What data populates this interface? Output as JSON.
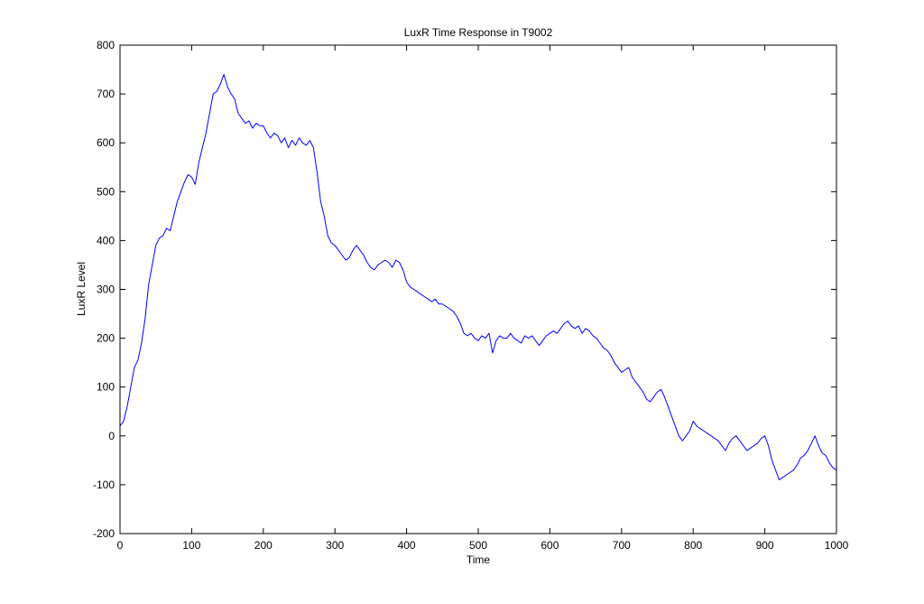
{
  "chart_data": {
    "type": "line",
    "title": "LuxR Time Response in T9002",
    "xlabel": "Time",
    "ylabel": "LuxR Level",
    "xlim": [
      0,
      1000
    ],
    "ylim": [
      -200,
      800
    ],
    "xticks": [
      0,
      100,
      200,
      300,
      400,
      500,
      600,
      700,
      800,
      900,
      1000
    ],
    "yticks": [
      -200,
      -100,
      0,
      100,
      200,
      300,
      400,
      500,
      600,
      700,
      800
    ],
    "grid": false,
    "legend": "none",
    "line_color": "#0000ff",
    "series": [
      {
        "x": [
          0,
          5,
          10,
          15,
          20,
          25,
          30,
          35,
          40,
          45,
          50,
          55,
          60,
          65,
          70,
          75,
          80,
          85,
          90,
          95,
          100,
          105,
          110,
          115,
          120,
          125,
          130,
          135,
          140,
          145,
          150,
          155,
          160,
          165,
          170,
          175,
          180,
          185,
          190,
          195,
          200,
          205,
          210,
          215,
          220,
          225,
          230,
          235,
          240,
          245,
          250,
          255,
          260,
          265,
          270,
          275,
          280,
          285,
          290,
          295,
          300,
          305,
          310,
          315,
          320,
          325,
          330,
          335,
          340,
          345,
          350,
          355,
          360,
          365,
          370,
          375,
          380,
          385,
          390,
          395,
          400,
          405,
          410,
          415,
          420,
          425,
          430,
          435,
          440,
          445,
          450,
          455,
          460,
          465,
          470,
          475,
          480,
          485,
          490,
          495,
          500,
          505,
          510,
          515,
          520,
          525,
          530,
          535,
          540,
          545,
          550,
          555,
          560,
          565,
          570,
          575,
          580,
          585,
          590,
          595,
          600,
          605,
          610,
          615,
          620,
          625,
          630,
          635,
          640,
          645,
          650,
          655,
          660,
          665,
          670,
          675,
          680,
          685,
          690,
          695,
          700,
          705,
          710,
          715,
          720,
          725,
          730,
          735,
          740,
          745,
          750,
          755,
          760,
          765,
          770,
          775,
          780,
          785,
          790,
          795,
          800,
          805,
          810,
          815,
          820,
          825,
          830,
          835,
          840,
          845,
          850,
          855,
          860,
          865,
          870,
          875,
          880,
          885,
          890,
          895,
          900,
          905,
          910,
          915,
          920,
          925,
          930,
          935,
          940,
          945,
          950,
          955,
          960,
          965,
          970,
          975,
          980,
          985,
          990,
          995,
          1000
        ],
        "y": [
          20,
          30,
          60,
          100,
          140,
          155,
          190,
          240,
          310,
          350,
          390,
          405,
          410,
          425,
          420,
          450,
          480,
          500,
          520,
          535,
          530,
          515,
          560,
          590,
          620,
          660,
          700,
          705,
          720,
          740,
          715,
          700,
          690,
          660,
          650,
          640,
          645,
          630,
          640,
          635,
          635,
          620,
          610,
          620,
          615,
          600,
          610,
          590,
          605,
          595,
          610,
          600,
          595,
          605,
          590,
          540,
          480,
          450,
          410,
          395,
          390,
          380,
          370,
          360,
          365,
          380,
          390,
          380,
          370,
          355,
          345,
          340,
          350,
          355,
          360,
          355,
          345,
          360,
          355,
          340,
          315,
          305,
          300,
          295,
          290,
          285,
          280,
          275,
          280,
          270,
          270,
          265,
          260,
          255,
          245,
          230,
          210,
          205,
          210,
          200,
          195,
          205,
          200,
          210,
          170,
          195,
          205,
          200,
          200,
          210,
          200,
          195,
          190,
          205,
          200,
          205,
          195,
          185,
          195,
          205,
          210,
          215,
          210,
          220,
          230,
          235,
          225,
          220,
          225,
          210,
          220,
          215,
          205,
          200,
          190,
          180,
          175,
          165,
          150,
          140,
          130,
          135,
          140,
          120,
          110,
          100,
          90,
          75,
          70,
          80,
          90,
          95,
          80,
          60,
          40,
          20,
          0,
          -10,
          0,
          10,
          30,
          20,
          15,
          10,
          5,
          0,
          -5,
          -10,
          -20,
          -30,
          -15,
          -5,
          0,
          -10,
          -20,
          -30,
          -25,
          -20,
          -15,
          -5,
          0,
          -20,
          -50,
          -70,
          -90,
          -85,
          -80,
          -75,
          -70,
          -60,
          -45,
          -40,
          -30,
          -15,
          0,
          -20,
          -35,
          -40,
          -55,
          -65,
          -70
        ]
      }
    ]
  }
}
